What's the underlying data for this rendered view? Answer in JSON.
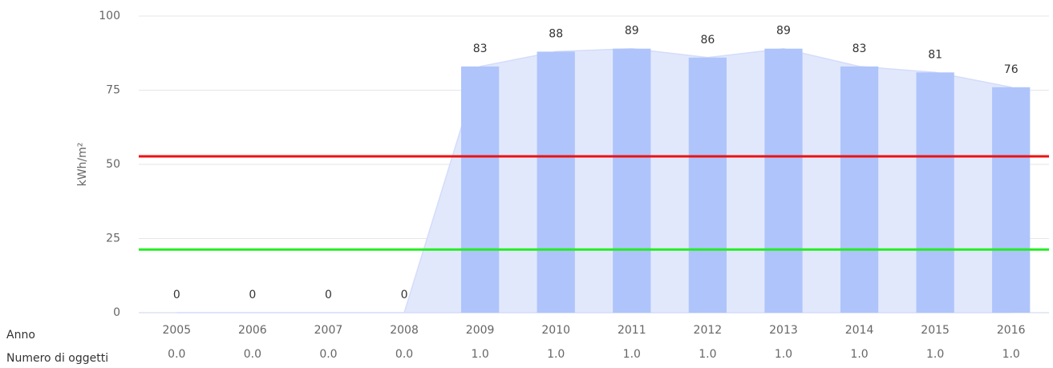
{
  "chart_data": {
    "type": "bar",
    "y_label": "kWh/m²",
    "categories": [
      "2005",
      "2006",
      "2007",
      "2008",
      "2009",
      "2010",
      "2011",
      "2012",
      "2013",
      "2014",
      "2015",
      "2016"
    ],
    "values": [
      0,
      0,
      0,
      0,
      83,
      88,
      89,
      86,
      89,
      83,
      81,
      76
    ],
    "color": "#afc4fb",
    "area_color": "#e2e8fc",
    "ylim": [
      0,
      100
    ],
    "yticks": [
      0,
      25,
      50,
      75,
      100
    ],
    "grid": true,
    "reference_lines": [
      {
        "value": 52.7,
        "color": "#ee1111"
      },
      {
        "value": 21.3,
        "color": "#22ee22"
      }
    ],
    "row_labels": [
      "Anno",
      "Numero di oggetti"
    ],
    "counts": [
      "0.0",
      "0.0",
      "0.0",
      "0.0",
      "1.0",
      "1.0",
      "1.0",
      "1.0",
      "1.0",
      "1.0",
      "1.0",
      "1.0"
    ]
  }
}
